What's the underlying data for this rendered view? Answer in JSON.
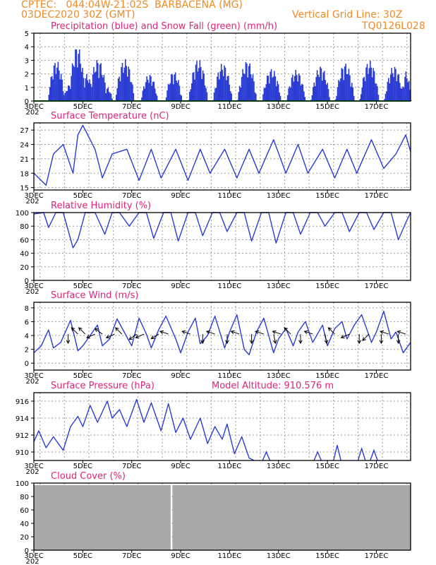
{
  "header": {
    "line1_left": "CPTEC:   044:04W-21:02S  BARBACENA (MG)",
    "line2_left": "03DEC2020 30Z (GMT)",
    "grid_note": "Vertical Grid Line: 30Z",
    "run_code": "TQ0126L028"
  },
  "colors": {
    "header": "#f08a24",
    "title": "#e0247a",
    "series": "#2a3cd4",
    "snow": "#22a02a",
    "cloud": "#a9a9a9",
    "wind_arrow": "#000000"
  },
  "x_axis": {
    "tick_labels": [
      "3DEC",
      "5DEC",
      "7DEC",
      "9DEC",
      "11DEC",
      "13DEC",
      "15DEC",
      "17DEC"
    ],
    "under_label": "202"
  },
  "chart_data": [
    {
      "id": "precip",
      "type": "bar",
      "title": "Precipitation (blue) and Snow Fall (green) (mm/h)",
      "ylim": [
        0,
        5
      ],
      "yticks": [
        0,
        1,
        2,
        3,
        4,
        5
      ],
      "x_days": [
        3,
        18.4
      ],
      "peaks": [
        {
          "day": 3.9,
          "value": 3.0,
          "width": 0.35
        },
        {
          "day": 4.4,
          "value": 1.2,
          "width": 0.2
        },
        {
          "day": 4.75,
          "value": 4.1,
          "width": 0.35
        },
        {
          "day": 5.15,
          "value": 2.0,
          "width": 0.25
        },
        {
          "day": 5.6,
          "value": 3.1,
          "width": 0.4
        },
        {
          "day": 6.0,
          "value": 1.0,
          "width": 0.2
        },
        {
          "day": 6.7,
          "value": 3.1,
          "width": 0.4
        },
        {
          "day": 7.7,
          "value": 2.0,
          "width": 0.35
        },
        {
          "day": 8.7,
          "value": 2.2,
          "width": 0.35
        },
        {
          "day": 9.7,
          "value": 3.1,
          "width": 0.4
        },
        {
          "day": 10.7,
          "value": 2.8,
          "width": 0.4
        },
        {
          "day": 11.7,
          "value": 3.0,
          "width": 0.4
        },
        {
          "day": 12.7,
          "value": 2.4,
          "width": 0.4
        },
        {
          "day": 13.7,
          "value": 2.3,
          "width": 0.4
        },
        {
          "day": 14.7,
          "value": 2.6,
          "width": 0.4
        },
        {
          "day": 15.7,
          "value": 2.8,
          "width": 0.4
        },
        {
          "day": 16.7,
          "value": 3.0,
          "width": 0.4
        },
        {
          "day": 17.7,
          "value": 2.6,
          "width": 0.4
        },
        {
          "day": 18.2,
          "value": 2.2,
          "width": 0.2
        }
      ],
      "snowfall": 0
    },
    {
      "id": "temp",
      "type": "line",
      "title": "Surface Temperature (nC)",
      "ylim": [
        14.5,
        28.5
      ],
      "yticks": [
        15,
        18,
        21,
        24,
        27
      ],
      "x": [
        3.0,
        3.5,
        3.8,
        4.2,
        4.6,
        4.8,
        5.0,
        5.5,
        5.8,
        6.2,
        6.8,
        7.3,
        7.8,
        8.2,
        8.8,
        9.3,
        9.8,
        10.2,
        10.8,
        11.3,
        11.8,
        12.2,
        12.8,
        13.3,
        13.8,
        14.2,
        14.8,
        15.3,
        15.8,
        16.2,
        16.8,
        17.3,
        17.8,
        18.2,
        18.4
      ],
      "y": [
        18,
        15.5,
        22,
        24,
        18,
        26,
        28,
        23,
        17,
        22,
        23,
        16.5,
        23,
        17,
        23,
        16.5,
        23,
        18,
        23,
        17,
        23,
        18,
        25,
        18,
        24,
        18,
        23,
        17,
        23,
        18,
        25,
        19,
        22,
        26,
        22.5
      ]
    },
    {
      "id": "rh",
      "type": "line",
      "title": "Relative Humidity (%)",
      "ylim": [
        0,
        100
      ],
      "yticks": [
        0,
        20,
        40,
        60,
        80,
        100
      ],
      "x": [
        3.0,
        3.4,
        3.6,
        3.9,
        4.2,
        4.6,
        4.8,
        5.1,
        5.5,
        5.9,
        6.2,
        6.5,
        6.9,
        7.3,
        7.6,
        7.9,
        8.3,
        8.6,
        8.9,
        9.3,
        9.6,
        9.9,
        10.3,
        10.6,
        10.9,
        11.3,
        11.6,
        11.9,
        12.3,
        12.6,
        12.9,
        13.3,
        13.6,
        13.9,
        14.3,
        14.6,
        14.9,
        15.3,
        15.6,
        15.9,
        16.3,
        16.6,
        16.9,
        17.3,
        17.6,
        17.9,
        18.2,
        18.4
      ],
      "y": [
        98,
        100,
        78,
        100,
        100,
        48,
        60,
        100,
        100,
        68,
        100,
        100,
        80,
        100,
        100,
        62,
        100,
        100,
        58,
        100,
        100,
        66,
        100,
        100,
        72,
        100,
        100,
        58,
        100,
        100,
        55,
        100,
        100,
        68,
        100,
        100,
        80,
        100,
        100,
        72,
        100,
        100,
        75,
        100,
        100,
        60,
        85,
        100
      ]
    },
    {
      "id": "wind",
      "type": "line",
      "title": "Surface Wind (m/s)",
      "ylim": [
        -1,
        8.8
      ],
      "yticks": [
        0,
        2,
        4,
        6,
        8
      ],
      "x": [
        3.0,
        3.3,
        3.6,
        3.8,
        4.1,
        4.5,
        4.8,
        5.0,
        5.3,
        5.6,
        5.8,
        6.1,
        6.4,
        6.8,
        7.0,
        7.3,
        7.6,
        7.8,
        8.1,
        8.4,
        8.8,
        9.0,
        9.3,
        9.6,
        9.8,
        10.1,
        10.4,
        10.8,
        11.0,
        11.3,
        11.6,
        11.8,
        12.1,
        12.4,
        12.8,
        13.0,
        13.3,
        13.6,
        13.8,
        14.1,
        14.4,
        14.8,
        15.0,
        15.3,
        15.6,
        15.8,
        16.1,
        16.4,
        16.8,
        17.0,
        17.3,
        17.6,
        17.8,
        18.1,
        18.4
      ],
      "y": [
        1.5,
        2.5,
        4.8,
        2.2,
        3.0,
        6.2,
        1.8,
        2.5,
        4.0,
        5.5,
        2.5,
        3.5,
        6.4,
        3.8,
        2.5,
        6.5,
        4.2,
        2.2,
        4.8,
        6.8,
        3.5,
        1.5,
        4.5,
        6.5,
        2.8,
        4.0,
        6.8,
        2.2,
        4.5,
        7.0,
        2.0,
        1.2,
        4.5,
        6.5,
        1.5,
        3.5,
        5.0,
        2.5,
        4.5,
        6.0,
        3.0,
        5.5,
        2.5,
        5.0,
        6.0,
        3.5,
        5.5,
        7.0,
        3.0,
        4.5,
        7.5,
        3.5,
        4.5,
        1.5,
        3.0
      ],
      "arrows": [
        {
          "day": 4.4,
          "dx": 0,
          "dy": -1
        },
        {
          "day": 4.8,
          "dx": -0.7,
          "dy": 0.7
        },
        {
          "day": 5.1,
          "dx": -0.7,
          "dy": 0.7
        },
        {
          "day": 5.5,
          "dx": -0.9,
          "dy": -0.4
        },
        {
          "day": 5.8,
          "dx": -0.8,
          "dy": 0.6
        },
        {
          "day": 6.3,
          "dx": -0.9,
          "dy": -0.4
        },
        {
          "day": 6.6,
          "dx": -0.7,
          "dy": 0.7
        },
        {
          "day": 7.2,
          "dx": -0.8,
          "dy": -0.6
        },
        {
          "day": 7.5,
          "dx": -0.9,
          "dy": -0.4
        },
        {
          "day": 8.1,
          "dx": -0.8,
          "dy": -0.5
        },
        {
          "day": 8.5,
          "dx": -0.9,
          "dy": 0.3
        },
        {
          "day": 9.4,
          "dx": -0.9,
          "dy": 0.3
        },
        {
          "day": 9.9,
          "dx": 0,
          "dy": -1
        },
        {
          "day": 10.4,
          "dx": -0.9,
          "dy": 0.3
        },
        {
          "day": 10.9,
          "dx": 0,
          "dy": -1
        },
        {
          "day": 11.4,
          "dx": -0.9,
          "dy": 0.3
        },
        {
          "day": 11.9,
          "dx": 0,
          "dy": -1
        },
        {
          "day": 12.4,
          "dx": -0.9,
          "dy": 0.3
        },
        {
          "day": 12.8,
          "dx": 0.2,
          "dy": -1
        },
        {
          "day": 13.1,
          "dx": -0.9,
          "dy": 0.3
        },
        {
          "day": 13.5,
          "dx": -0.7,
          "dy": 0.7
        },
        {
          "day": 13.9,
          "dx": 0,
          "dy": -1
        },
        {
          "day": 14.4,
          "dx": -0.9,
          "dy": 0.3
        },
        {
          "day": 14.9,
          "dx": 0.2,
          "dy": -1
        },
        {
          "day": 15.3,
          "dx": -0.7,
          "dy": 0.7
        },
        {
          "day": 15.9,
          "dx": -0.9,
          "dy": -0.4
        },
        {
          "day": 16.3,
          "dx": 0,
          "dy": -1
        },
        {
          "day": 16.7,
          "dx": -0.7,
          "dy": -0.7
        },
        {
          "day": 17.2,
          "dx": 0,
          "dy": -1
        },
        {
          "day": 17.5,
          "dx": -0.9,
          "dy": 0.3
        },
        {
          "day": 17.9,
          "dx": 0,
          "dy": -1
        },
        {
          "day": 18.2,
          "dx": -0.9,
          "dy": 0.3
        }
      ]
    },
    {
      "id": "pres",
      "type": "line",
      "title": "Surface Pressure (hPa)",
      "ylim": [
        909,
        917
      ],
      "yticks": [
        910,
        912,
        914,
        916
      ],
      "x": [
        3.0,
        3.2,
        3.5,
        3.8,
        4.2,
        4.5,
        4.8,
        5.0,
        5.3,
        5.6,
        6.0,
        6.2,
        6.5,
        6.8,
        7.2,
        7.5,
        7.8,
        8.2,
        8.5,
        8.8,
        9.1,
        9.4,
        9.8,
        10.1,
        10.4,
        10.7,
        10.9,
        11.2,
        11.5,
        11.8,
        12.0
      ],
      "y": [
        911.2,
        912.5,
        910.5,
        911.8,
        910.2,
        913.0,
        914.2,
        913.0,
        915.5,
        913.5,
        916.0,
        914.0,
        915.0,
        913.0,
        916.2,
        913.5,
        915.8,
        912.5,
        915.7,
        912.3,
        914.0,
        911.5,
        914.0,
        911.0,
        913.0,
        911.5,
        913.3,
        909.8,
        911.8,
        909.3,
        909.0
      ],
      "dips": [
        {
          "day": 12.5,
          "value": 910.0
        },
        {
          "day": 14.6,
          "value": 910.0
        },
        {
          "day": 15.4,
          "value": 910.8
        },
        {
          "day": 16.4,
          "value": 910.4
        },
        {
          "day": 16.9,
          "value": 910.2
        }
      ]
    },
    {
      "id": "cloud",
      "type": "area",
      "title": "Cloud Cover (%)",
      "ylim": [
        0,
        100
      ],
      "yticks": [
        0,
        20,
        40,
        60,
        80,
        100
      ],
      "fill_value": 97,
      "gap_day": 8.62
    }
  ],
  "pressure_note": "Model Altitude: 910.576 m"
}
